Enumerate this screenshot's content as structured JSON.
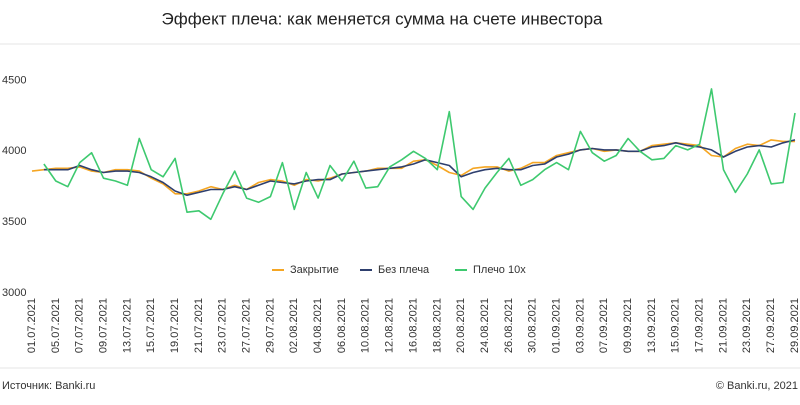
{
  "chart_data": {
    "type": "line",
    "title": "Эффект плеча: как меняется сумма на счете инвестора",
    "source": "Источник: Banki.ru",
    "copyright": "© Banki.ru, 2021",
    "categories": [
      "01.07.2021",
      null,
      "05.07.2021",
      null,
      "07.07.2021",
      null,
      "09.07.2021",
      null,
      "13.07.2021",
      null,
      "15.07.2021",
      null,
      "19.07.2021",
      null,
      "21.07.2021",
      null,
      "23.07.2021",
      null,
      "27.07.2021",
      null,
      "29.07.2021",
      null,
      "02.08.2021",
      null,
      "04.08.2021",
      null,
      "06.08.2021",
      null,
      "10.08.2021",
      null,
      "12.08.2021",
      null,
      "16.08.2021",
      null,
      "18.08.2021",
      null,
      "20.08.2021",
      null,
      "24.08.2021",
      null,
      "26.08.2021",
      null,
      "30.08.2021",
      null,
      "01.09.2021",
      null,
      "03.09.2021",
      null,
      "07.09.2021",
      null,
      "09.09.2021",
      null,
      "13.09.2021",
      null,
      "15.09.2021",
      null,
      "17.09.2021",
      null,
      "21.09.2021",
      null,
      "23.09.2021",
      null,
      "27.09.2021",
      null,
      "29.09.2021"
    ],
    "series": [
      {
        "name": "Закрытие",
        "color": "#f5a623",
        "values": [
          3860,
          3870,
          3880,
          3880,
          3890,
          3860,
          3850,
          3870,
          3870,
          3860,
          3810,
          3770,
          3700,
          3700,
          3720,
          3750,
          3730,
          3760,
          3730,
          3780,
          3800,
          3790,
          3760,
          3800,
          3790,
          3810,
          3840,
          3850,
          3860,
          3880,
          3880,
          3880,
          3930,
          3940,
          3900,
          3850,
          3830,
          3880,
          3890,
          3890,
          3860,
          3880,
          3920,
          3920,
          3970,
          3990,
          4010,
          4020,
          4000,
          4010,
          4000,
          4000,
          4040,
          4050,
          4060,
          4050,
          4040,
          3970,
          3960,
          4020,
          4050,
          4040,
          4080,
          4070,
          4070
        ]
      },
      {
        "name": "Без плеча",
        "color": "#2e3f6e",
        "values": [
          null,
          3870,
          3870,
          3870,
          3900,
          3870,
          3850,
          3860,
          3860,
          3850,
          3820,
          3780,
          3720,
          3690,
          3710,
          3730,
          3730,
          3750,
          3730,
          3760,
          3790,
          3780,
          3770,
          3790,
          3800,
          3800,
          3840,
          3850,
          3860,
          3870,
          3880,
          3890,
          3910,
          3940,
          3920,
          3900,
          3820,
          3850,
          3870,
          3880,
          3870,
          3870,
          3900,
          3910,
          3960,
          3980,
          4010,
          4020,
          4010,
          4010,
          4000,
          4000,
          4030,
          4040,
          4060,
          4040,
          4030,
          4010,
          3960,
          4000,
          4030,
          4040,
          4030,
          4060,
          4080
        ]
      },
      {
        "name": "Плечо 10x",
        "color": "#3ec96f",
        "values": [
          null,
          3910,
          3790,
          3750,
          3920,
          3990,
          3810,
          3790,
          3760,
          4090,
          3870,
          3820,
          3950,
          3570,
          3580,
          3520,
          3700,
          3860,
          3670,
          3640,
          3680,
          3920,
          3590,
          3850,
          3670,
          3900,
          3790,
          3930,
          3740,
          3750,
          3890,
          3940,
          4000,
          3950,
          3870,
          4280,
          3680,
          3590,
          3740,
          3850,
          3950,
          3760,
          3800,
          3870,
          3920,
          3870,
          4140,
          3990,
          3930,
          3970,
          4090,
          4000,
          3940,
          3950,
          4040,
          4010,
          4050,
          4440,
          3870,
          3710,
          3840,
          4010,
          3770,
          3780,
          4270
        ]
      }
    ],
    "ylim": [
      3000,
      4750
    ],
    "yticks": [
      3000,
      3500,
      4000,
      4500
    ],
    "grid": false,
    "legend": "bottom"
  }
}
